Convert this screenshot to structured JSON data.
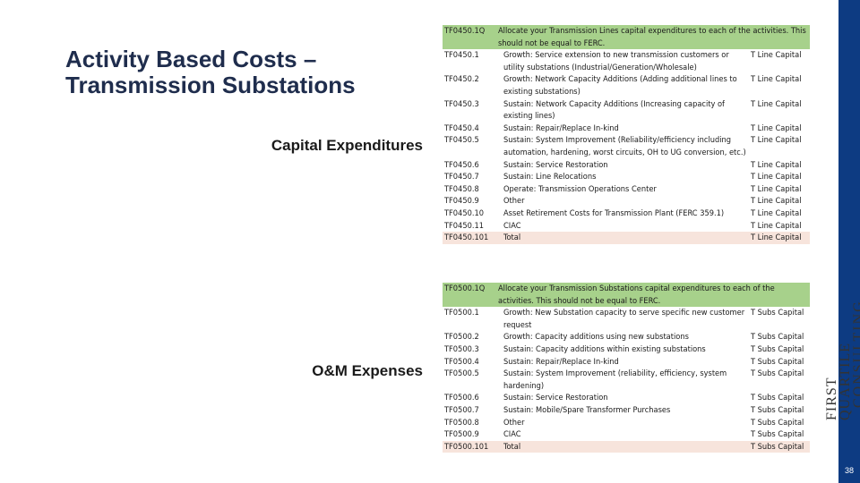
{
  "slide": {
    "title": "Activity Based Costs – Transmission Substations",
    "page_number": "38",
    "logo_line1": "FIRST QUARTILE",
    "logo_line2": "CONSULTING"
  },
  "sections": {
    "capital_label": "Capital Expenditures",
    "om_label": "O&M Expenses"
  },
  "capital_table": {
    "header_code": "TF0450.1Q",
    "header_text": "Allocate your Transmission Lines capital expenditures to each of the activities. This should not be equal to FERC.",
    "rows": [
      {
        "code": "TF0450.1",
        "desc": "Growth: Service extension to new transmission customers or utility substations (Industrial/Generation/Wholesale)",
        "type": "T Line Capital"
      },
      {
        "code": "TF0450.2",
        "desc": "Growth: Network Capacity Additions (Adding additional lines to existing substations)",
        "type": "T Line Capital"
      },
      {
        "code": "TF0450.3",
        "desc": "Sustain: Network Capacity Additions (Increasing capacity of existing lines)",
        "type": "T Line Capital"
      },
      {
        "code": "TF0450.4",
        "desc": "Sustain: Repair/Replace In-kind",
        "type": "T Line Capital"
      },
      {
        "code": "TF0450.5",
        "desc": "Sustain: System Improvement (Reliability/efficiency including automation, hardening, worst circuits, OH to UG conversion, etc.)",
        "type": "T Line Capital"
      },
      {
        "code": "TF0450.6",
        "desc": "Sustain: Service Restoration",
        "type": "T Line Capital"
      },
      {
        "code": "TF0450.7",
        "desc": "Sustain: Line Relocations",
        "type": "T Line Capital"
      },
      {
        "code": "TF0450.8",
        "desc": "Operate: Transmission Operations Center",
        "type": "T Line Capital"
      },
      {
        "code": "TF0450.9",
        "desc": "Other",
        "type": "T Line Capital"
      },
      {
        "code": "TF0450.10",
        "desc": "Asset Retirement Costs for Transmission Plant (FERC 359.1)",
        "type": "T Line Capital"
      },
      {
        "code": "TF0450.11",
        "desc": "CIAC",
        "type": "T Line Capital"
      }
    ],
    "total": {
      "code": "TF0450.101",
      "desc": "Total",
      "type": "T Line Capital"
    }
  },
  "om_table": {
    "header_code": "TF0500.1Q",
    "header_text": "Allocate your Transmission Substations capital expenditures to each of the activities. This should not be equal to FERC.",
    "rows": [
      {
        "code": "TF0500.1",
        "desc": "Growth: New Substation capacity to serve specific new customer request",
        "type": "T Subs Capital"
      },
      {
        "code": "TF0500.2",
        "desc": "Growth: Capacity additions using new substations",
        "type": "T Subs Capital"
      },
      {
        "code": "TF0500.3",
        "desc": "Sustain: Capacity additions within existing substations",
        "type": "T Subs Capital"
      },
      {
        "code": "TF0500.4",
        "desc": "Sustain: Repair/Replace In-kind",
        "type": "T Subs Capital"
      },
      {
        "code": "TF0500.5",
        "desc": "Sustain: System Improvement (reliability, efficiency, system hardening)",
        "type": "T Subs Capital"
      },
      {
        "code": "TF0500.6",
        "desc": "Sustain: Service Restoration",
        "type": "T Subs Capital"
      },
      {
        "code": "TF0500.7",
        "desc": "Sustain: Mobile/Spare Transformer Purchases",
        "type": "T Subs Capital"
      },
      {
        "code": "TF0500.8",
        "desc": "Other",
        "type": "T Subs Capital"
      },
      {
        "code": "TF0500.9",
        "desc": "CIAC",
        "type": "T Subs Capital"
      }
    ],
    "total": {
      "code": "TF0500.101",
      "desc": "Total",
      "type": "T Subs Capital"
    }
  },
  "colors": {
    "header_fill": "#a7d18b",
    "total_fill": "#f7e4dc",
    "brand_blue": "#0d3b82",
    "title_color": "#1f2d4d"
  }
}
